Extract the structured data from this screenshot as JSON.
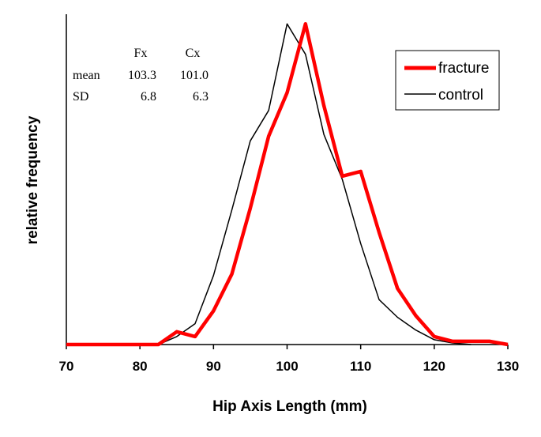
{
  "chart_data": {
    "type": "line",
    "xlabel": "Hip Axis Length (mm)",
    "ylabel": "relative frequency",
    "xlim": [
      70,
      130
    ],
    "ylim": [
      0,
      1.03
    ],
    "xticks": [
      70,
      80,
      90,
      100,
      110,
      120,
      130
    ],
    "xtick_labels": [
      "70",
      "80",
      "90",
      "100",
      "110",
      "120",
      "130"
    ],
    "yticks_shown": false,
    "grid": false,
    "legend_position": "top-right",
    "series": [
      {
        "name": "fracture",
        "color": "#ff0000",
        "x": [
          70,
          82.5,
          85,
          87.5,
          90,
          92.5,
          95,
          97.5,
          100,
          102.5,
          105,
          107.5,
          110,
          112.5,
          115,
          117.5,
          120,
          122.5,
          125,
          127.5,
          130
        ],
        "y": [
          0,
          0,
          0.04,
          0.025,
          0.105,
          0.22,
          0.425,
          0.65,
          0.785,
          1.0,
          0.745,
          0.525,
          0.54,
          0.35,
          0.175,
          0.09,
          0.025,
          0.01,
          0.01,
          0.01,
          0
        ]
      },
      {
        "name": "control",
        "color": "#000000",
        "x": [
          70,
          82.5,
          85,
          87.5,
          90,
          92.5,
          95,
          97.5,
          100,
          102.5,
          105,
          107.5,
          110,
          112.5,
          115,
          117.5,
          120,
          122.5,
          125
        ],
        "y": [
          0,
          0,
          0.025,
          0.065,
          0.215,
          0.42,
          0.635,
          0.73,
          1.0,
          0.905,
          0.655,
          0.515,
          0.315,
          0.14,
          0.085,
          0.045,
          0.015,
          0.005,
          0
        ]
      }
    ],
    "stats_table": {
      "headers": [
        "",
        "Fx",
        "Cx"
      ],
      "rows": [
        {
          "label": "mean",
          "fx": "103.3",
          "cx": "101.0"
        },
        {
          "label": "SD",
          "fx": "6.8",
          "cx": "6.3"
        }
      ]
    }
  }
}
